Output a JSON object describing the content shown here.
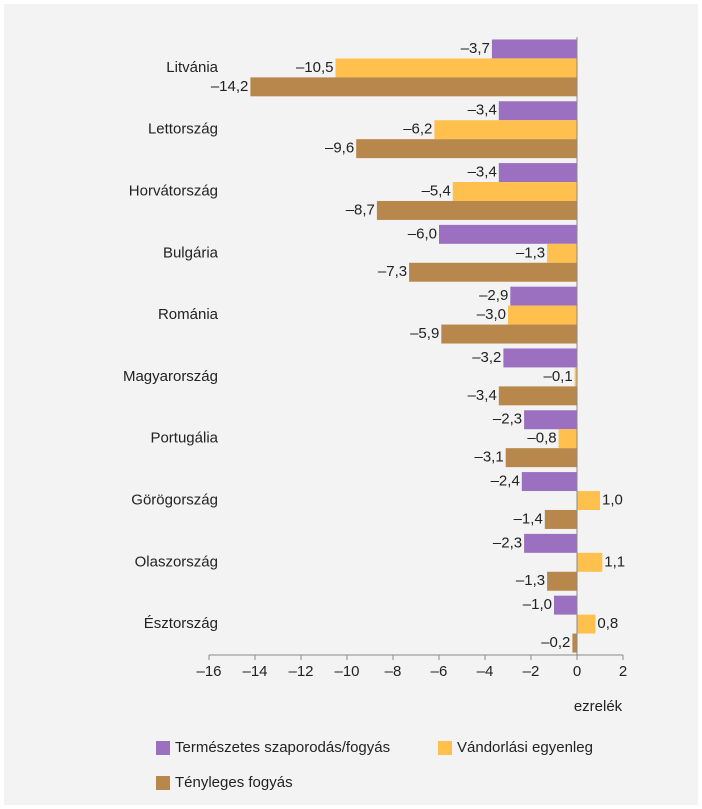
{
  "chart_data": {
    "type": "barh",
    "categories": [
      "Litvánia",
      "Lettország",
      "Horvátország",
      "Bulgária",
      "Románia",
      "Magyarország",
      "Portugália",
      "Görögország",
      "Olaszország",
      "Észtország"
    ],
    "series": [
      {
        "name": "Természetes szaporodás/fogyás",
        "color": "#9b70c0",
        "values": [
          -3.7,
          -3.4,
          -3.4,
          -6.0,
          -2.9,
          -3.2,
          -2.3,
          -2.4,
          -2.3,
          -1.0
        ],
        "value_labels": [
          "–3,7",
          "–3,4",
          "–3,4",
          "–6,0",
          "–2,9",
          "–3,2",
          "–2,3",
          "–2,4",
          "–2,3",
          "–1,0"
        ]
      },
      {
        "name": "Vándorlási egyenleg",
        "color": "#ffc04d",
        "values": [
          -10.5,
          -6.2,
          -5.4,
          -1.3,
          -3.0,
          -0.1,
          -0.8,
          1.0,
          1.1,
          0.8
        ],
        "value_labels": [
          "–10,5",
          "–6,2",
          "–5,4",
          "–1,3",
          "–3,0",
          "–0,1",
          "–0,8",
          "1,0",
          "1,1",
          "0,8"
        ]
      },
      {
        "name": "Tényleges fogyás",
        "color": "#b8874b",
        "values": [
          -14.2,
          -9.6,
          -8.7,
          -7.3,
          -5.9,
          -3.4,
          -3.1,
          -1.4,
          -1.3,
          -0.2
        ],
        "value_labels": [
          "–14,2",
          "–9,6",
          "–8,7",
          "–7,3",
          "–5,9",
          "–3,4",
          "–3,1",
          "–1,4",
          "–1,3",
          "–0,2"
        ]
      }
    ],
    "xlabel": "ezrelék",
    "xlim": [
      -16,
      2
    ],
    "xticks": [
      {
        "value": -16,
        "label": "–16"
      },
      {
        "value": -14,
        "label": "–14"
      },
      {
        "value": -12,
        "label": "–12"
      },
      {
        "value": -10,
        "label": "–10"
      },
      {
        "value": -8,
        "label": "–8"
      },
      {
        "value": -6,
        "label": "–6"
      },
      {
        "value": -4,
        "label": "–4"
      },
      {
        "value": -2,
        "label": "–2"
      },
      0,
      2
    ],
    "legend": "bottom"
  }
}
